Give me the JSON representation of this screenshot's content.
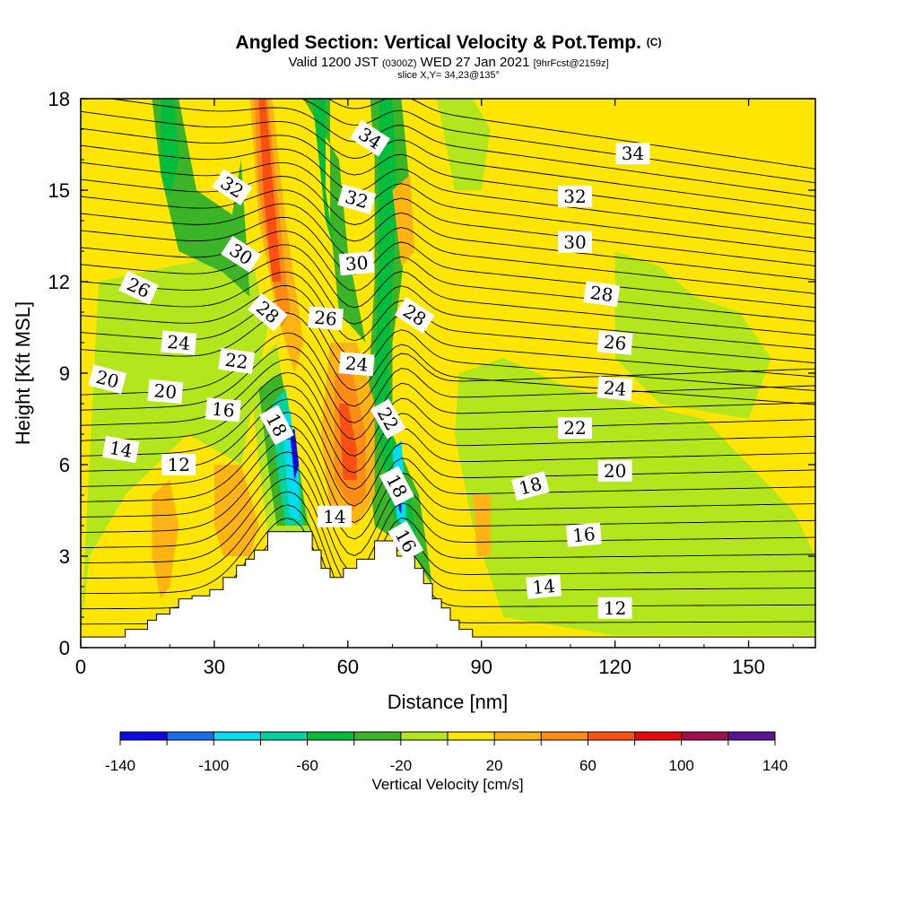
{
  "header": {
    "title": "Angled Section: Vertical Velocity & Pot.Temp.",
    "title_tag": "(C)",
    "valid": "Valid 1200 JST",
    "valid_utc": "(0300Z)",
    "date": "WED 27 Jan 2021",
    "forecast": "[9hrFcst@2159z]",
    "slice": "slice X,Y= 34,23@135°"
  },
  "chart_data": {
    "type": "heatmap",
    "xlabel": "Distance [nm]",
    "ylabel": "Height [Kft MSL]",
    "xlim": [
      0,
      165
    ],
    "ylim": [
      0,
      18
    ],
    "xticks": [
      "0",
      "30",
      "60",
      "90",
      "120",
      "150"
    ],
    "yticks": [
      "0",
      "3",
      "6",
      "9",
      "12",
      "15",
      "18"
    ],
    "colorbar": {
      "title": "Vertical Velocity [cm/s]",
      "tick_labels": [
        "-140",
        "-100",
        "-60",
        "-20",
        "20",
        "60",
        "100",
        "140"
      ],
      "bins": [
        -140,
        -120,
        -100,
        -80,
        -60,
        -40,
        -20,
        0,
        20,
        40,
        60,
        80,
        100,
        120,
        140
      ],
      "colors": [
        "#0a0ae6",
        "#1a6ef0",
        "#00dcf0",
        "#00d2a0",
        "#00be3c",
        "#3cb428",
        "#b4e61e",
        "#ffe600",
        "#ffb414",
        "#ff8c14",
        "#ff5014",
        "#e60a0a",
        "#a0104a",
        "#5a1496"
      ]
    },
    "terrain_profile_kft": [
      [
        0,
        0.35
      ],
      [
        10,
        0.35
      ],
      [
        10,
        0.6
      ],
      [
        15,
        0.6
      ],
      [
        15,
        0.9
      ],
      [
        17,
        0.9
      ],
      [
        17,
        1.1
      ],
      [
        20,
        1.1
      ],
      [
        20,
        1.3
      ],
      [
        22,
        1.3
      ],
      [
        22,
        1.6
      ],
      [
        25,
        1.6
      ],
      [
        25,
        1.7
      ],
      [
        29,
        1.7
      ],
      [
        29,
        1.9
      ],
      [
        32,
        1.9
      ],
      [
        32,
        2.3
      ],
      [
        35,
        2.3
      ],
      [
        35,
        2.7
      ],
      [
        37,
        2.7
      ],
      [
        37,
        2.9
      ],
      [
        39,
        2.9
      ],
      [
        39,
        3.2
      ],
      [
        42,
        3.2
      ],
      [
        42,
        3.8
      ],
      [
        52,
        3.8
      ],
      [
        52,
        3.2
      ],
      [
        54,
        3.2
      ],
      [
        54,
        2.6
      ],
      [
        56,
        2.6
      ],
      [
        56,
        2.3
      ],
      [
        59,
        2.3
      ],
      [
        59,
        2.6
      ],
      [
        62,
        2.6
      ],
      [
        62,
        2.9
      ],
      [
        66,
        2.9
      ],
      [
        66,
        3.5
      ],
      [
        71,
        3.5
      ],
      [
        71,
        3.0
      ],
      [
        75,
        3.0
      ],
      [
        75,
        2.6
      ],
      [
        77,
        2.6
      ],
      [
        77,
        2.1
      ],
      [
        79,
        2.1
      ],
      [
        79,
        1.6
      ],
      [
        81,
        1.6
      ],
      [
        81,
        1.3
      ],
      [
        83,
        1.3
      ],
      [
        83,
        0.9
      ],
      [
        85,
        0.9
      ],
      [
        85,
        0.6
      ],
      [
        88,
        0.6
      ],
      [
        88,
        0.35
      ],
      [
        165,
        0.35
      ]
    ],
    "vertical_velocity_regions": [
      {
        "value": -10,
        "pts": [
          [
            0,
            0.4
          ],
          [
            4,
            12
          ],
          [
            20,
            12.5
          ],
          [
            38,
            13
          ],
          [
            42,
            10.5
          ],
          [
            36,
            6
          ],
          [
            24,
            7
          ],
          [
            10,
            5
          ],
          [
            2,
            3
          ]
        ]
      },
      {
        "value": -30,
        "pts": [
          [
            16,
            18
          ],
          [
            22,
            18
          ],
          [
            26,
            15
          ],
          [
            34,
            14.2
          ],
          [
            36,
            16
          ],
          [
            38,
            11.5
          ],
          [
            32,
            12.3
          ],
          [
            22,
            13
          ],
          [
            18,
            15.5
          ]
        ]
      },
      {
        "value": -50,
        "pts": [
          [
            18,
            18
          ],
          [
            21,
            18
          ],
          [
            22,
            16
          ],
          [
            20,
            14.8
          ],
          [
            18,
            15.6
          ]
        ]
      },
      {
        "value": -10,
        "pts": [
          [
            38,
            9
          ],
          [
            44,
            10
          ],
          [
            48,
            6
          ],
          [
            52,
            3.8
          ],
          [
            42,
            3.8
          ],
          [
            40,
            6
          ]
        ]
      },
      {
        "value": -30,
        "pts": [
          [
            40,
            8.5
          ],
          [
            45,
            9
          ],
          [
            49,
            6
          ],
          [
            51,
            4
          ],
          [
            44,
            4
          ],
          [
            42,
            6
          ]
        ]
      },
      {
        "value": -70,
        "pts": [
          [
            43,
            8
          ],
          [
            46,
            8.5
          ],
          [
            49,
            6
          ],
          [
            50,
            4
          ],
          [
            46,
            4
          ],
          [
            44,
            6
          ]
        ]
      },
      {
        "value": -90,
        "pts": [
          [
            45,
            7.5
          ],
          [
            47,
            7.8
          ],
          [
            49,
            5.5
          ],
          [
            49,
            4.2
          ],
          [
            47,
            4.3
          ],
          [
            46,
            6
          ]
        ]
      },
      {
        "value": -130,
        "pts": [
          [
            47,
            7
          ],
          [
            48,
            7.2
          ],
          [
            49,
            6
          ],
          [
            48,
            5.5
          ]
        ]
      },
      {
        "value": -30,
        "pts": [
          [
            50,
            18
          ],
          [
            56,
            18
          ],
          [
            56,
            14
          ],
          [
            58,
            11
          ],
          [
            64,
            10
          ],
          [
            60,
            13
          ],
          [
            58,
            16
          ]
        ]
      },
      {
        "value": -50,
        "pts": [
          [
            52,
            18
          ],
          [
            55,
            18
          ],
          [
            55,
            15
          ],
          [
            57,
            13
          ],
          [
            55,
            14
          ]
        ]
      },
      {
        "value": -30,
        "pts": [
          [
            65,
            18
          ],
          [
            72,
            18
          ],
          [
            74,
            15
          ],
          [
            72,
            12
          ],
          [
            70,
            10
          ],
          [
            70,
            7
          ],
          [
            76,
            5
          ],
          [
            78,
            3
          ],
          [
            79,
            2
          ],
          [
            75,
            3
          ],
          [
            71,
            3.5
          ],
          [
            66,
            4
          ],
          [
            64,
            7
          ],
          [
            66,
            12
          ],
          [
            66,
            16
          ]
        ]
      },
      {
        "value": -50,
        "pts": [
          [
            67,
            18
          ],
          [
            70,
            18
          ],
          [
            71,
            15
          ],
          [
            70,
            12
          ],
          [
            69,
            9
          ],
          [
            70,
            7
          ],
          [
            74,
            5
          ],
          [
            76,
            3
          ],
          [
            73,
            3
          ],
          [
            69,
            5
          ],
          [
            66,
            8
          ],
          [
            67,
            13
          ]
        ]
      },
      {
        "value": -90,
        "pts": [
          [
            70,
            6.5
          ],
          [
            72,
            6.8
          ],
          [
            73,
            5
          ],
          [
            73,
            4
          ],
          [
            71,
            4.2
          ]
        ]
      },
      {
        "value": -130,
        "pts": [
          [
            71,
            5.5
          ],
          [
            72,
            5.6
          ],
          [
            72,
            4.4
          ],
          [
            71.5,
            4.5
          ]
        ]
      },
      {
        "value": -10,
        "pts": [
          [
            85,
            9
          ],
          [
            95,
            9.5
          ],
          [
            110,
            8.5
          ],
          [
            125,
            8
          ],
          [
            140,
            7.5
          ],
          [
            150,
            6
          ],
          [
            160,
            4.5
          ],
          [
            165,
            3
          ],
          [
            165,
            0.4
          ],
          [
            120,
            0.4
          ],
          [
            95,
            1
          ],
          [
            88,
            4
          ],
          [
            84,
            7
          ]
        ]
      },
      {
        "value": -10,
        "pts": [
          [
            120,
            13
          ],
          [
            130,
            12.5
          ],
          [
            138,
            11.5
          ],
          [
            148,
            11
          ],
          [
            155,
            9.5
          ],
          [
            150,
            7.5
          ],
          [
            130,
            8
          ],
          [
            120,
            9.5
          ]
        ]
      },
      {
        "value": -10,
        "pts": [
          [
            80,
            18
          ],
          [
            88,
            18
          ],
          [
            92,
            17
          ],
          [
            90,
            15
          ],
          [
            84,
            15
          ]
        ]
      },
      {
        "value": 30,
        "pts": [
          [
            38,
            18
          ],
          [
            43,
            18
          ],
          [
            46,
            14
          ],
          [
            50,
            10
          ],
          [
            48,
            9
          ],
          [
            44,
            11
          ],
          [
            40,
            14
          ]
        ]
      },
      {
        "value": 50,
        "pts": [
          [
            39,
            18
          ],
          [
            42,
            18
          ],
          [
            44,
            15
          ],
          [
            47,
            11
          ],
          [
            45,
            10.5
          ],
          [
            42,
            13
          ],
          [
            40,
            15
          ]
        ]
      },
      {
        "value": 70,
        "pts": [
          [
            40,
            18
          ],
          [
            41.5,
            18
          ],
          [
            43,
            15.5
          ],
          [
            45,
            12
          ],
          [
            43,
            12
          ],
          [
            41,
            15
          ]
        ]
      },
      {
        "value": 30,
        "pts": [
          [
            56,
            10
          ],
          [
            62,
            10
          ],
          [
            66,
            8
          ],
          [
            66,
            5
          ],
          [
            62,
            4
          ],
          [
            56,
            4.5
          ],
          [
            54,
            7
          ]
        ]
      },
      {
        "value": 50,
        "pts": [
          [
            57,
            9
          ],
          [
            61,
            9
          ],
          [
            64,
            7
          ],
          [
            64,
            5
          ],
          [
            61,
            4.5
          ],
          [
            57,
            5.5
          ]
        ]
      },
      {
        "value": 70,
        "pts": [
          [
            58,
            8
          ],
          [
            60,
            8
          ],
          [
            62,
            6.5
          ],
          [
            62,
            5.5
          ],
          [
            59,
            5.5
          ]
        ]
      },
      {
        "value": 30,
        "pts": [
          [
            16,
            5
          ],
          [
            20,
            5.5
          ],
          [
            22,
            4
          ],
          [
            20,
            2
          ],
          [
            18,
            1.6
          ],
          [
            16,
            3
          ]
        ]
      },
      {
        "value": 30,
        "pts": [
          [
            30,
            6
          ],
          [
            36,
            6
          ],
          [
            40,
            4
          ],
          [
            38,
            3
          ],
          [
            32,
            3
          ],
          [
            30,
            4
          ]
        ]
      },
      {
        "value": 30,
        "pts": [
          [
            70,
            15
          ],
          [
            74,
            15.5
          ],
          [
            75,
            13
          ],
          [
            72,
            12.5
          ]
        ]
      },
      {
        "value": 30,
        "pts": [
          [
            88,
            5
          ],
          [
            92,
            5
          ],
          [
            92,
            3
          ],
          [
            89,
            3
          ]
        ]
      }
    ],
    "contour_labels": [
      {
        "text": "34",
        "x": 65,
        "y": 16.7,
        "angle": 33
      },
      {
        "text": "34",
        "x": 124,
        "y": 16.2,
        "angle": 0
      },
      {
        "text": "32",
        "x": 34,
        "y": 15.1,
        "angle": 33
      },
      {
        "text": "32",
        "x": 62,
        "y": 14.7,
        "angle": 16
      },
      {
        "text": "32",
        "x": 111,
        "y": 14.8,
        "angle": 0
      },
      {
        "text": "30",
        "x": 36,
        "y": 12.9,
        "angle": 33
      },
      {
        "text": "30",
        "x": 62,
        "y": 12.6,
        "angle": -5
      },
      {
        "text": "30",
        "x": 111,
        "y": 13.3,
        "angle": 0
      },
      {
        "text": "26",
        "x": 13,
        "y": 11.8,
        "angle": 25
      },
      {
        "text": "28",
        "x": 42,
        "y": 11.0,
        "angle": 40
      },
      {
        "text": "28",
        "x": 75,
        "y": 10.9,
        "angle": 33
      },
      {
        "text": "28",
        "x": 117,
        "y": 11.6,
        "angle": 8
      },
      {
        "text": "26",
        "x": 55,
        "y": 10.8,
        "angle": 5
      },
      {
        "text": "26",
        "x": 120,
        "y": 10.0,
        "angle": 5
      },
      {
        "text": "24",
        "x": 22,
        "y": 10.0,
        "angle": 5
      },
      {
        "text": "24",
        "x": 62,
        "y": 9.3,
        "angle": 5
      },
      {
        "text": "24",
        "x": 120,
        "y": 8.5,
        "angle": 5
      },
      {
        "text": "22",
        "x": 35,
        "y": 9.4,
        "angle": 8
      },
      {
        "text": "22",
        "x": 69,
        "y": 7.5,
        "angle": 60
      },
      {
        "text": "22",
        "x": 111,
        "y": 7.2,
        "angle": 0
      },
      {
        "text": "20",
        "x": 6,
        "y": 8.8,
        "angle": 15
      },
      {
        "text": "20",
        "x": 19,
        "y": 8.4,
        "angle": 5
      },
      {
        "text": "20",
        "x": 120,
        "y": 5.8,
        "angle": 0
      },
      {
        "text": "16",
        "x": 32,
        "y": 7.8,
        "angle": 5
      },
      {
        "text": "16",
        "x": 73,
        "y": 3.5,
        "angle": 60
      },
      {
        "text": "16",
        "x": 113,
        "y": 3.7,
        "angle": -5
      },
      {
        "text": "18",
        "x": 44,
        "y": 7.3,
        "angle": 62
      },
      {
        "text": "18",
        "x": 71,
        "y": 5.3,
        "angle": 62
      },
      {
        "text": "18",
        "x": 101,
        "y": 5.3,
        "angle": -15
      },
      {
        "text": "14",
        "x": 9,
        "y": 6.5,
        "angle": 10
      },
      {
        "text": "14",
        "x": 57,
        "y": 4.3,
        "angle": 0
      },
      {
        "text": "14",
        "x": 104,
        "y": 2.0,
        "angle": -5
      },
      {
        "text": "12",
        "x": 22,
        "y": 6.0,
        "angle": 0
      },
      {
        "text": "12",
        "x": 120,
        "y": 1.3,
        "angle": 0
      }
    ]
  }
}
